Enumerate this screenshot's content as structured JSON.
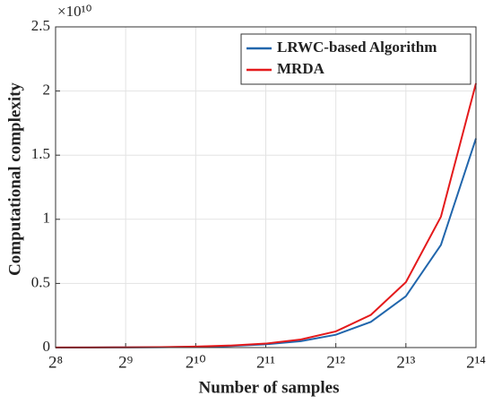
{
  "chart_data": {
    "type": "line",
    "xlabel": "Number of samples",
    "ylabel": "Computational complexity",
    "y_multiplier": "×10¹⁰",
    "x": [
      256,
      362,
      512,
      724,
      1024,
      1448,
      2048,
      2896,
      4096,
      5793,
      8192,
      11585,
      16384
    ],
    "series": [
      {
        "name": "LRWC-based Algorithm",
        "color": "#2166ac",
        "values": [
          0.0004,
          0.0008,
          0.0016,
          0.003,
          0.0063,
          0.012,
          0.025,
          0.05,
          0.1,
          0.2,
          0.4,
          0.8,
          1.63
        ]
      },
      {
        "name": "MRDA",
        "color": "#e41a1c",
        "values": [
          0.0005,
          0.001,
          0.002,
          0.0039,
          0.0079,
          0.016,
          0.031,
          0.063,
          0.126,
          0.255,
          0.51,
          1.02,
          2.06
        ]
      }
    ],
    "xscale": "log",
    "xbase": 2,
    "xlim": [
      256,
      16384
    ],
    "xticks": [
      {
        "value": 256,
        "label": "2⁸"
      },
      {
        "value": 512,
        "label": "2⁹"
      },
      {
        "value": 1024,
        "label": "2¹⁰"
      },
      {
        "value": 2048,
        "label": "2¹¹"
      },
      {
        "value": 4096,
        "label": "2¹²"
      },
      {
        "value": 8192,
        "label": "2¹³"
      },
      {
        "value": 16384,
        "label": "2¹⁴"
      }
    ],
    "ylim": [
      0,
      2.5
    ],
    "yticks": [
      0,
      0.5,
      1,
      1.5,
      2,
      2.5
    ],
    "grid": true,
    "legend": "upper right"
  }
}
